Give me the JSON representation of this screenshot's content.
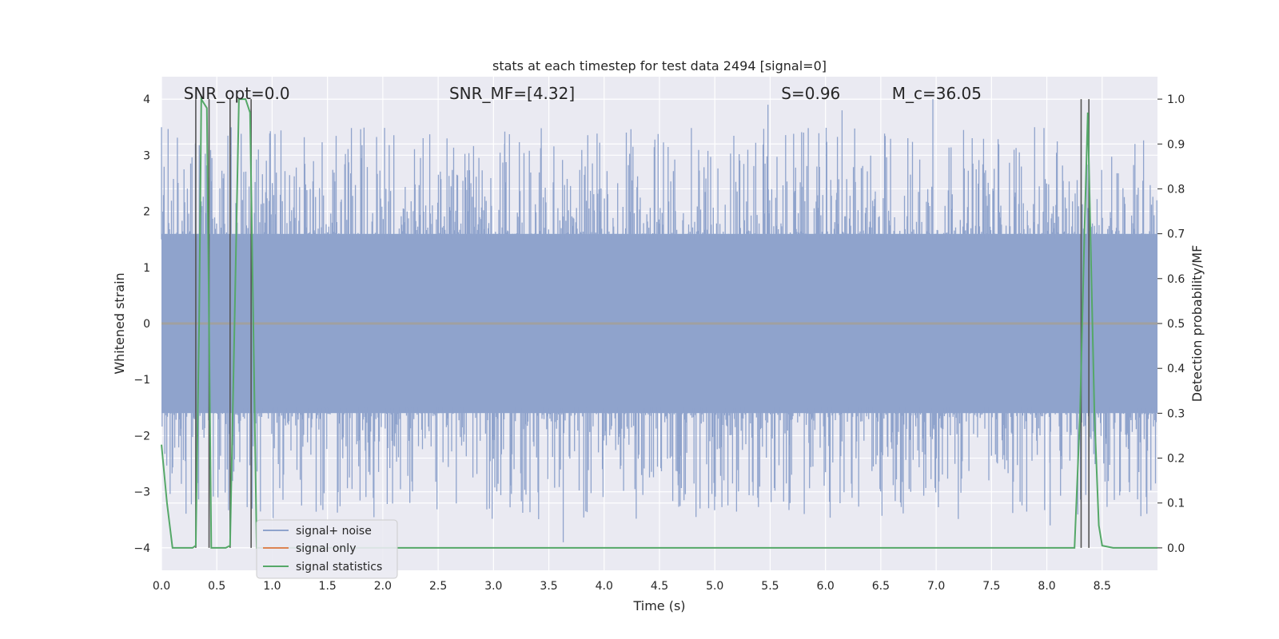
{
  "chart_data": {
    "type": "line",
    "title": "stats at each timestep for test data 2494 [signal=0]",
    "xlabel": "Time (s)",
    "ylabel": "Whitened strain",
    "y2label": "Detection probability/MF",
    "xlim": [
      0,
      9.0
    ],
    "ylim": [
      -4.4,
      4.4
    ],
    "y2lim": [
      -0.05,
      1.05
    ],
    "x_ticks": [
      0.0,
      0.5,
      1.0,
      1.5,
      2.0,
      2.5,
      3.0,
      3.5,
      4.0,
      4.5,
      5.0,
      5.5,
      6.0,
      6.5,
      7.0,
      7.5,
      8.0,
      8.5
    ],
    "x_tick_labels": [
      "0.0",
      "0.5",
      "1.0",
      "1.5",
      "2.0",
      "2.5",
      "3.0",
      "3.5",
      "4.0",
      "4.5",
      "5.0",
      "5.5",
      "6.0",
      "6.5",
      "7.0",
      "7.5",
      "8.0",
      "8.5"
    ],
    "y_ticks": [
      4,
      3,
      2,
      1,
      0,
      -1,
      -2,
      -3,
      -4
    ],
    "y_tick_labels": [
      "4",
      "3",
      "2",
      "1",
      "0",
      "−1",
      "−2",
      "−3",
      "−4"
    ],
    "y2_ticks": [
      1.0,
      0.9,
      0.8,
      0.7,
      0.6,
      0.5,
      0.4,
      0.3,
      0.2,
      0.1,
      0.0
    ],
    "y2_tick_labels": [
      "1.0",
      "0.9",
      "0.8",
      "0.7",
      "0.6",
      "0.5",
      "0.4",
      "0.3",
      "0.2",
      "0.1",
      "0.0"
    ],
    "grid": true,
    "legend_position": "lower-left",
    "annotations": [
      {
        "text": "SNR_opt=0.0",
        "x": 0.2
      },
      {
        "text": "SNR_MF=[4.32]",
        "x": 2.6
      },
      {
        "text": "S=0.96",
        "x": 5.6
      },
      {
        "text": "M_c=36.05",
        "x": 6.6
      }
    ],
    "vertical_lines_x": [
      0.31,
      0.43,
      0.62,
      0.81,
      8.31,
      8.38
    ],
    "series": [
      {
        "name": "signal+ noise",
        "color": "#8fa3cc",
        "axis": "left",
        "style": "dense noise trace, roughly ±1.6 with spikes up to ~4 and down to ~-4"
      },
      {
        "name": "signal only",
        "color": "#dd8452",
        "axis": "left",
        "values_note": "flat at 0"
      },
      {
        "name": "signal statistics",
        "color": "#55a868",
        "axis": "right",
        "x": [
          0.0,
          0.05,
          0.1,
          0.2,
          0.28,
          0.31,
          0.34,
          0.36,
          0.41,
          0.43,
          0.45,
          0.5,
          0.58,
          0.62,
          0.66,
          0.7,
          0.76,
          0.8,
          0.83,
          0.86,
          0.9,
          1.0,
          2.0,
          3.0,
          4.0,
          5.0,
          6.0,
          7.0,
          8.0,
          8.25,
          8.3,
          8.34,
          8.37,
          8.39,
          8.43,
          8.47,
          8.5,
          8.6,
          9.0
        ],
        "values": [
          0.23,
          0.1,
          0.0,
          0.0,
          0.0,
          0.005,
          0.5,
          1.0,
          0.98,
          0.5,
          0.0,
          0.0,
          0.0,
          0.005,
          0.5,
          1.0,
          1.0,
          0.97,
          0.5,
          0.0,
          0.0,
          0.0,
          0.0,
          0.0,
          0.0,
          0.0,
          0.0,
          0.0,
          0.0,
          0.0,
          0.3,
          0.7,
          0.97,
          0.75,
          0.3,
          0.05,
          0.005,
          0.0,
          0.0
        ]
      }
    ]
  }
}
